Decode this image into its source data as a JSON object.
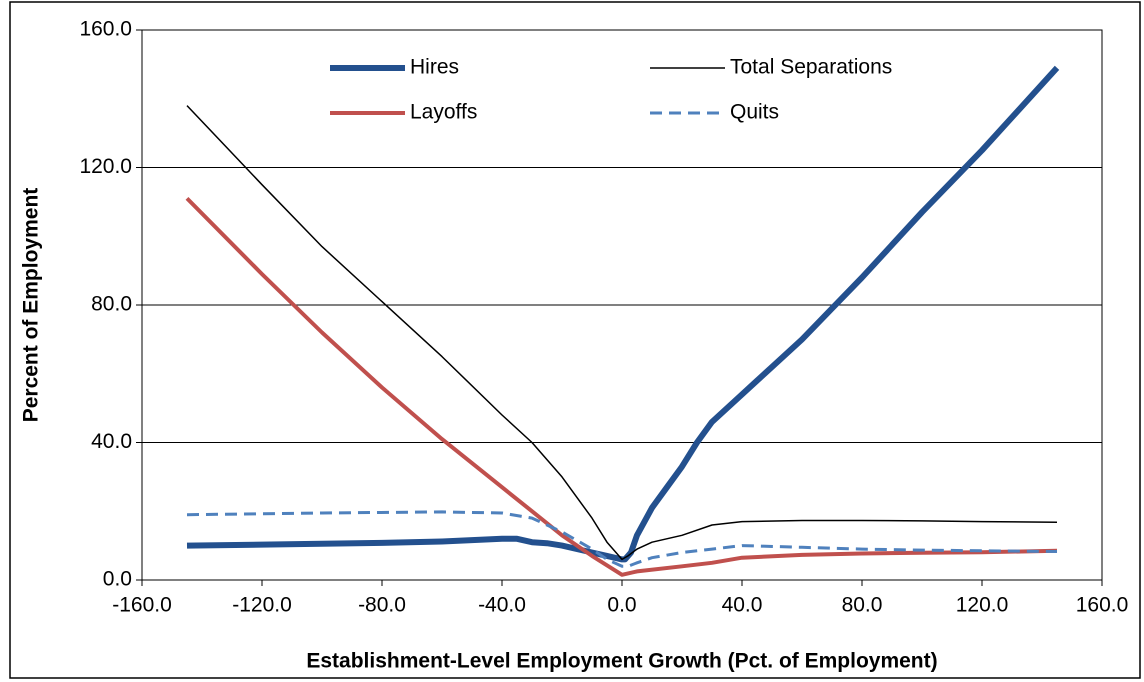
{
  "chart_data": {
    "type": "line",
    "xlabel": "Establishment-Level Employment Growth (Pct. of Employment)",
    "ylabel": "Percent of Employment",
    "xlim": [
      -160,
      160
    ],
    "ylim": [
      0,
      160
    ],
    "xticks": [
      {
        "value": -160,
        "label": "-160.0"
      },
      {
        "value": -120,
        "label": "-120.0"
      },
      {
        "value": -80,
        "label": "-80.0"
      },
      {
        "value": -40,
        "label": "-40.0"
      },
      {
        "value": 0,
        "label": "0.0"
      },
      {
        "value": 40,
        "label": "40.0"
      },
      {
        "value": 80,
        "label": "80.0"
      },
      {
        "value": 120,
        "label": "120.0"
      },
      {
        "value": 160,
        "label": "160.0"
      }
    ],
    "yticks": [
      {
        "value": 0,
        "label": "0.0"
      },
      {
        "value": 40,
        "label": "40.0"
      },
      {
        "value": 80,
        "label": "80.0"
      },
      {
        "value": 120,
        "label": "120.0"
      },
      {
        "value": 160,
        "label": "160.0"
      }
    ],
    "grid": true,
    "legend": "top",
    "series": [
      {
        "name": "Hires",
        "color": "#23508e",
        "line_width": 6,
        "x": [
          -145,
          -120,
          -80,
          -60,
          -40,
          -35,
          -30,
          -25,
          -20,
          -10,
          -5,
          0,
          1,
          3,
          5,
          10,
          15,
          20,
          25,
          30,
          40,
          50,
          60,
          70,
          80,
          100,
          120,
          145
        ],
        "values": [
          10,
          10.3,
          10.8,
          11.2,
          12,
          12,
          11,
          10.7,
          10,
          8,
          7,
          6,
          6,
          8,
          13,
          21,
          27,
          33,
          40,
          46,
          54,
          62,
          70,
          79,
          88,
          107,
          125,
          149
        ]
      },
      {
        "name": "Total Separations",
        "color": "#000000",
        "line_width": 1.5,
        "x": [
          -145,
          -120,
          -100,
          -80,
          -60,
          -40,
          -30,
          -20,
          -10,
          -5,
          0,
          2,
          5,
          10,
          20,
          30,
          40,
          60,
          80,
          100,
          120,
          145
        ],
        "values": [
          138,
          115,
          97,
          81,
          65,
          48,
          40,
          30,
          18,
          11,
          6,
          7,
          9,
          11,
          13,
          16,
          17,
          17.3,
          17.3,
          17.2,
          17,
          16.8
        ]
      },
      {
        "name": "Layoffs",
        "color": "#c0504d",
        "line_width": 4,
        "x": [
          -145,
          -120,
          -100,
          -80,
          -60,
          -40,
          -20,
          -10,
          0,
          5,
          20,
          30,
          40,
          60,
          80,
          100,
          120,
          145
        ],
        "values": [
          111,
          89,
          72,
          56,
          41,
          27,
          13,
          7,
          1.5,
          2.5,
          4,
          5,
          6.5,
          7.3,
          7.7,
          7.9,
          8.1,
          8.5
        ]
      },
      {
        "name": "Quits",
        "color": "#4f81bd",
        "line_width": 3,
        "dashed": true,
        "x": [
          -145,
          -100,
          -60,
          -40,
          -30,
          -20,
          -10,
          -5,
          0,
          2,
          5,
          10,
          20,
          30,
          40,
          60,
          80,
          100,
          120,
          145
        ],
        "values": [
          19,
          19.5,
          19.8,
          19.5,
          18,
          14,
          9,
          6,
          4,
          4,
          5,
          6.5,
          8,
          9,
          10,
          9.5,
          9,
          8.7,
          8.5,
          8.3
        ]
      }
    ]
  }
}
